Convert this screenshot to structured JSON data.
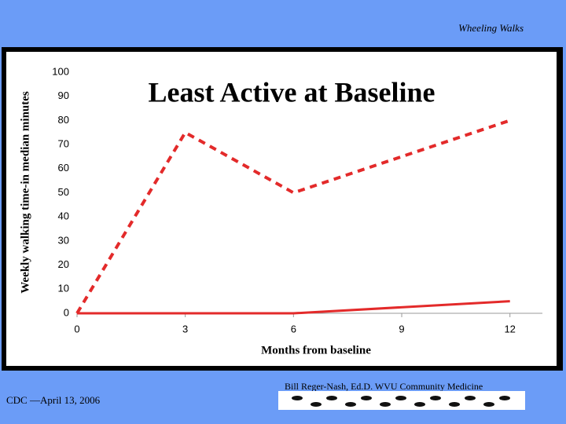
{
  "header": "Wheeling Walks",
  "footer": {
    "left": "CDC —April 13, 2006",
    "right": "Bill Reger-Nash, Ed.D.  WVU Community Medicine"
  },
  "chart_data": {
    "type": "line",
    "title": "Least Active at Baseline",
    "x_label": "Months from baseline",
    "y_label": "Weekly walking time-in median minutes",
    "x": [
      0,
      3,
      6,
      12
    ],
    "series": [
      {
        "color": "#e32a2a",
        "dashed": true,
        "values": [
          0,
          75,
          50,
          80
        ]
      },
      {
        "color": "#e32a2a",
        "dashed": false,
        "values": [
          0,
          0,
          0,
          5
        ]
      }
    ],
    "xlim": [
      0,
      12.9
    ],
    "xticks": [
      0,
      3,
      6,
      9,
      12
    ],
    "ylim": [
      0,
      100
    ],
    "yticks": [
      0,
      10,
      20,
      30,
      40,
      50,
      60,
      70,
      80,
      90,
      100
    ],
    "grid": false
  }
}
